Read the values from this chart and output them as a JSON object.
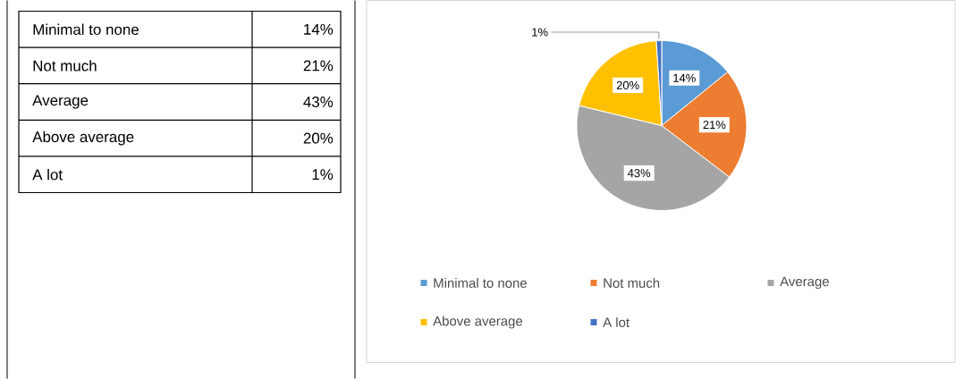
{
  "chart_data": {
    "type": "pie",
    "categories": [
      "Minimal to none",
      "Not much",
      "Average",
      "Above average",
      "A lot"
    ],
    "values": [
      14,
      21,
      43,
      20,
      1
    ],
    "colors": [
      "#5b9bd5",
      "#ed7d31",
      "#a5a5a5",
      "#ffc000",
      "#4472c4"
    ],
    "value_labels": [
      "14%",
      "21%",
      "43%",
      "20%",
      "1%"
    ],
    "legend": "bottom"
  }
}
